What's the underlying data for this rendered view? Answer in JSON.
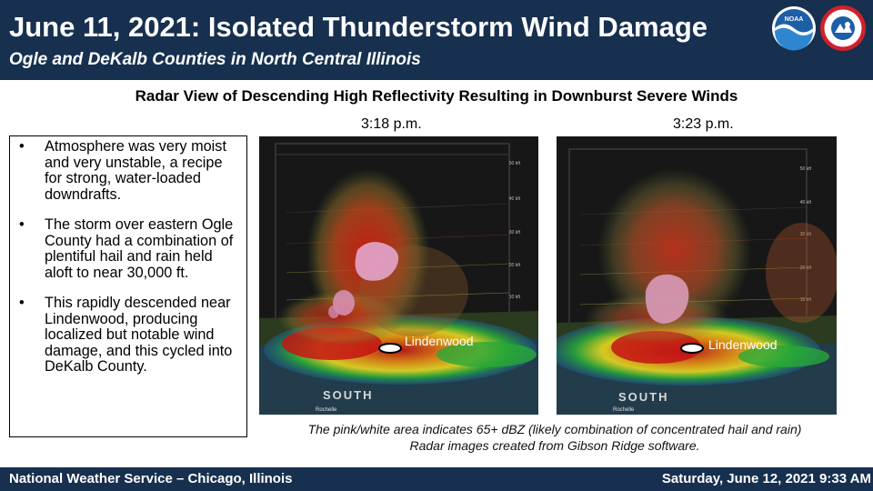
{
  "header": {
    "title": "June 11, 2021: Isolated Thunderstorm Wind Damage",
    "subtitle": "Ogle and DeKalb Counties in North Central Illinois",
    "logos": [
      {
        "icon": "noaa-logo-icon",
        "text": "NOAA"
      },
      {
        "icon": "nws-logo-icon",
        "text": "NATIONAL WEATHER SERVICE"
      }
    ]
  },
  "section_heading": "Radar View of Descending High Reflectivity Resulting in Downburst Severe Winds",
  "bullets": [
    {
      "marker": "•",
      "text": "Atmosphere was very moist and very unstable, a recipe for strong, water-loaded downdrafts."
    },
    {
      "marker": "•",
      "text": "The storm over eastern Ogle County had a combination of plentiful hail and rain held aloft to near 30,000 ft."
    },
    {
      "marker": "•",
      "text": "This rapidly descended near Lindenwood, producing localized but notable wind damage, and this cycled into DeKalb County."
    }
  ],
  "panels": [
    {
      "time": "3:18 p.m.",
      "town_label": "Lindenwood",
      "direction_label": "SOUTH",
      "small_town_label": "Rochelle",
      "altitude_labels": [
        "50 kft",
        "40 kft",
        "30 kft",
        "20 kft",
        "10 kft"
      ]
    },
    {
      "time": "3:23 p.m.",
      "town_label": "Lindenwood",
      "direction_label": "SOUTH",
      "small_town_label": "Rochelle",
      "altitude_labels": [
        "50 kft",
        "40 kft",
        "30 kft",
        "20 kft",
        "10 kft"
      ]
    }
  ],
  "captions": [
    "The pink/white area indicates 65+ dBZ (likely combination of concentrated hail and rain)",
    "Radar images created from Gibson Ridge software."
  ],
  "footer": {
    "left": "National Weather Service – Chicago, Illinois",
    "right": "Saturday, June 12, 2021 9:33 AM"
  },
  "colors": {
    "banner": "#17304f",
    "reflectivity_high": "#d81f10",
    "reflectivity_extreme": "#e8a3c8"
  }
}
